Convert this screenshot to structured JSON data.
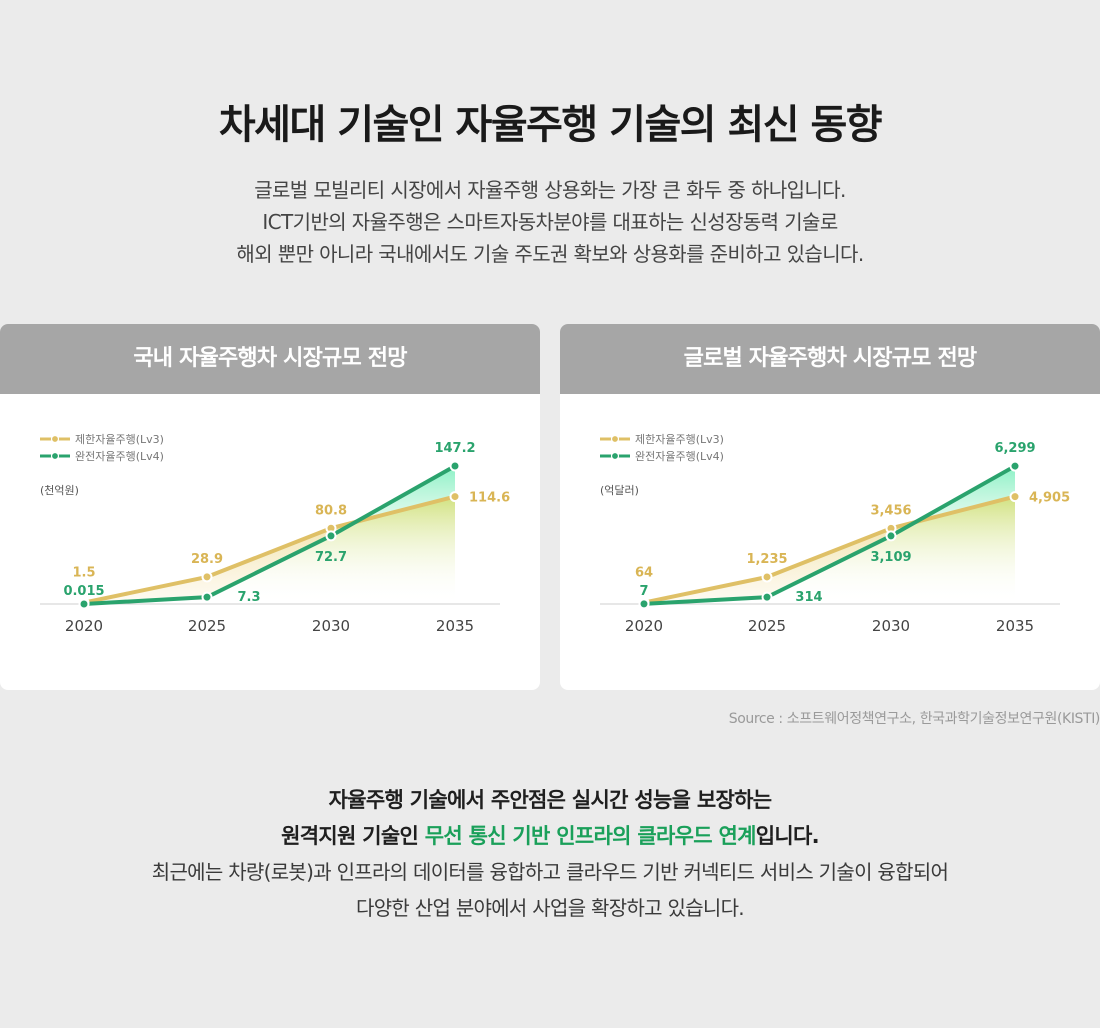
{
  "page": {
    "title": "차세대 기술인 자율주행 기술의 최신 동향",
    "intro": [
      "글로벌 모빌리티 시장에서 자율주행 상용화는 가장 큰 화두 중 하나입니다.",
      "ICT기반의 자율주행은 스마트자동차분야를 대표하는 신성장동력 기술로",
      "해외 뿐만 아니라 국내에서도 기술 주도권 확보와 상용화를 준비하고 있습니다."
    ],
    "source": "Source : 소프트웨어정책연구소, 한국과학기술정보연구원(KISTI)",
    "summary": {
      "line1": "자율주행 기술에서 주안점은 실시간 성능을 보장하는",
      "line2_prefix": "원격지원 기술인 ",
      "line2_highlight": "무선 통신 기반 인프라의 클라우드 연계",
      "line2_suffix": "입니다.",
      "line3": "최근에는 차량(로봇)과 인프라의 데이터를 융합하고 클라우드 기반 커넥티드 서비스 기술이 융합되어",
      "line4": "다양한 산업 분야에서 사업을 확장하고 있습니다."
    },
    "colors": {
      "background": "#ebebeb",
      "card_header": "#a6a6a6",
      "lv3": "#dfc066",
      "lv4": "#2aa36d",
      "highlight": "#1aa05a"
    }
  },
  "chart_data": [
    {
      "type": "line",
      "title": "국내 자율주행차 시장규모 전망",
      "unit": "(천억원)",
      "x": [
        "2020",
        "2025",
        "2030",
        "2035"
      ],
      "series": [
        {
          "name": "제한자율주행(Lv3)",
          "values": [
            1.5,
            28.9,
            80.8,
            114.6
          ],
          "labels": [
            "1.5",
            "28.9",
            "80.8",
            "114.6"
          ],
          "color": "#dfc066"
        },
        {
          "name": "완전자율주행(Lv4)",
          "values": [
            0.015,
            7.3,
            72.7,
            147.2
          ],
          "labels": [
            "0.015",
            "7.3",
            "72.7",
            "147.2"
          ],
          "color": "#2aa36d"
        }
      ],
      "ylim": [
        0,
        160
      ],
      "grid": false,
      "legend": "top-left"
    },
    {
      "type": "line",
      "title": "글로벌 자율주행차 시장규모 전망",
      "unit": "(억달러)",
      "x": [
        "2020",
        "2025",
        "2030",
        "2035"
      ],
      "series": [
        {
          "name": "제한자율주행(Lv3)",
          "values": [
            64,
            1235,
            3456,
            4905
          ],
          "labels": [
            "64",
            "1,235",
            "3,456",
            "4,905"
          ],
          "color": "#dfc066"
        },
        {
          "name": "완전자율주행(Lv4)",
          "values": [
            7,
            314,
            3109,
            6299
          ],
          "labels": [
            "7",
            "314",
            "3,109",
            "6,299"
          ],
          "color": "#2aa36d"
        }
      ],
      "ylim": [
        0,
        6850
      ],
      "grid": false,
      "legend": "top-left"
    }
  ]
}
